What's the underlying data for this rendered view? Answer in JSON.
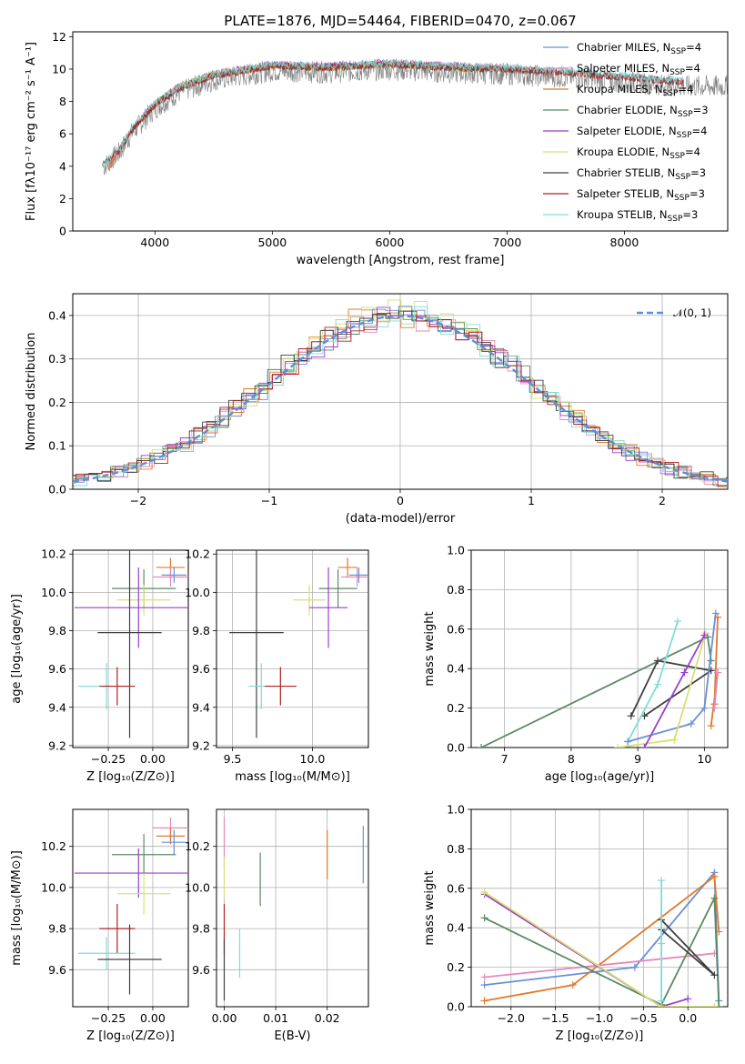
{
  "chart_data": [
    {
      "type": "line",
      "title": "PLATE=1876, MJD=54464, FIBERID=0470, z=0.067",
      "xlabel": "wavelength [Angstrom, rest frame]",
      "ylabel": "Flux [fλ10⁻¹⁷ erg cm⁻² s⁻¹ A⁻¹]",
      "xlim": [
        3300,
        8880
      ],
      "ylim": [
        0,
        12.3
      ],
      "xticks": [
        "4000",
        "5000",
        "6000",
        "7000",
        "8000"
      ],
      "yticks": [
        "0",
        "2",
        "4",
        "6",
        "8",
        "10",
        "12"
      ],
      "legend_position": "upper-right",
      "series": [
        {
          "name": "Chabrier MILES, N_SSP=4",
          "color": "#6a8fd8",
          "x": [
            3600,
            3700,
            3800,
            3900,
            4000,
            4200,
            4500,
            5000,
            5500,
            6000,
            6500,
            7000,
            7400
          ],
          "y": [
            3.8,
            5.0,
            6.2,
            7.0,
            7.8,
            8.8,
            9.6,
            10.2,
            10.1,
            10.3,
            10.1,
            10.0,
            9.7
          ]
        },
        {
          "name": "Salpeter MILES, N_SSP=4",
          "color": "#e58ab8",
          "x": [
            3600,
            3700,
            3800,
            3900,
            4000,
            4200,
            4500,
            5000,
            5500,
            6000,
            6500,
            7000,
            7400
          ],
          "y": [
            3.9,
            5.1,
            6.3,
            7.1,
            7.9,
            8.9,
            9.7,
            10.3,
            10.2,
            10.4,
            10.2,
            10.1,
            9.8
          ]
        },
        {
          "name": "Kroupa MILES, N_SSP=4",
          "color": "#e07a2a",
          "x": [
            3600,
            3700,
            3800,
            3900,
            4000,
            4200,
            4500,
            5000,
            5500,
            6000,
            6500,
            7000,
            7400
          ],
          "y": [
            3.8,
            5.0,
            6.2,
            7.0,
            7.8,
            8.8,
            9.6,
            10.2,
            10.1,
            10.3,
            10.1,
            10.0,
            9.7
          ]
        },
        {
          "name": "Chabrier ELODIE, N_SSP=3",
          "color": "#5a8a64",
          "x": [
            3900,
            4000,
            4200,
            4500,
            5000,
            5500,
            6000,
            6500,
            6800
          ],
          "y": [
            7.0,
            7.9,
            8.9,
            9.7,
            10.2,
            10.1,
            10.3,
            10.1,
            10.0
          ]
        },
        {
          "name": "Salpeter ELODIE, N_SSP=4",
          "color": "#9b3fcf",
          "x": [
            3900,
            4000,
            4200,
            4500,
            5000,
            5500,
            6000,
            6500,
            6800
          ],
          "y": [
            7.1,
            7.9,
            8.9,
            9.7,
            10.3,
            10.2,
            10.4,
            10.2,
            10.1
          ]
        },
        {
          "name": "Kroupa ELODIE, N_SSP=4",
          "color": "#d8e070",
          "x": [
            3900,
            4000,
            4200,
            4500,
            5000,
            5500,
            6000,
            6500,
            6800
          ],
          "y": [
            7.0,
            7.9,
            8.9,
            9.7,
            10.2,
            10.1,
            10.3,
            10.1,
            10.0
          ]
        },
        {
          "name": "Chabrier STELIB, N_SSP=3",
          "color": "#404040",
          "x": [
            3550,
            3700,
            3800,
            3900,
            4000,
            4200,
            4500,
            5000,
            5500,
            6000,
            6500,
            7000,
            7500,
            8000,
            8500
          ],
          "y": [
            4.0,
            5.0,
            6.2,
            7.0,
            7.8,
            8.8,
            9.6,
            10.2,
            10.1,
            10.3,
            10.1,
            10.0,
            9.8,
            9.5,
            9.2
          ]
        },
        {
          "name": "Salpeter STELIB, N_SSP=3",
          "color": "#b22020",
          "x": [
            3550,
            3700,
            3800,
            3900,
            4000,
            4200,
            4500,
            5000,
            5500,
            6000,
            6500,
            7000,
            7500,
            8000,
            8500
          ],
          "y": [
            4.0,
            5.0,
            6.2,
            7.0,
            7.8,
            8.8,
            9.6,
            10.2,
            10.1,
            10.3,
            10.1,
            10.0,
            9.8,
            9.5,
            9.2
          ]
        },
        {
          "name": "Kroupa STELIB, N_SSP=3",
          "color": "#80dcd6",
          "x": [
            3550,
            3700,
            3800,
            3900,
            4000,
            4200,
            4500,
            5000,
            5500,
            6000,
            6500,
            7000,
            7500,
            8000,
            8500
          ],
          "y": [
            4.1,
            5.1,
            6.3,
            7.1,
            7.9,
            8.9,
            9.7,
            10.3,
            10.2,
            10.4,
            10.2,
            10.1,
            9.9,
            9.6,
            9.3
          ]
        }
      ]
    },
    {
      "type": "line",
      "xlabel": "(data-model)/error",
      "ylabel": "Normed distribution",
      "xlim": [
        -2.5,
        2.5
      ],
      "ylim": [
        0,
        0.45
      ],
      "xticks": [
        "−2",
        "−1",
        "0",
        "1",
        "2"
      ],
      "yticks": [
        "0.0",
        "0.1",
        "0.2",
        "0.3",
        "0.4"
      ],
      "legend": "𝒩(0, 1)",
      "gaussian": {
        "mu": 0,
        "sigma": 1,
        "color": "#5b8fd6"
      },
      "histogram_colors": [
        "#6a8fd8",
        "#e58ab8",
        "#e07a2a",
        "#5a8a64",
        "#9b3fcf",
        "#d8e070",
        "#404040",
        "#b22020",
        "#80dcd6"
      ]
    },
    {
      "type": "scatter",
      "xlabel": "Z [log₁₀(Z/Z⊙)]",
      "ylabel": "age  [log₁₀(age/yr)]",
      "xlim": [
        -0.45,
        0.2
      ],
      "ylim": [
        9.19,
        10.22
      ],
      "xticks": [
        "−0.25",
        "0.00"
      ],
      "yticks": [
        "9.2",
        "9.4",
        "9.6",
        "9.8",
        "10.0",
        "10.2"
      ],
      "points": [
        {
          "x": 0.1,
          "y": 10.13,
          "xerr": 0.08,
          "yerr": 0.05,
          "color": "#e07a2a"
        },
        {
          "x": 0.1,
          "y": 10.08,
          "xerr": 0.1,
          "yerr": 0.05,
          "color": "#e58ab8"
        },
        {
          "x": 0.12,
          "y": 10.09,
          "xerr": 0.07,
          "yerr": 0.04,
          "color": "#6a8fd8"
        },
        {
          "x": -0.05,
          "y": 10.02,
          "xerr": 0.18,
          "yerr": 0.1,
          "color": "#5a8a64"
        },
        {
          "x": -0.05,
          "y": 9.96,
          "xerr": 0.15,
          "yerr": 0.08,
          "color": "#d8e070"
        },
        {
          "x": -0.08,
          "y": 9.92,
          "xerr": 0.36,
          "yerr": 0.21,
          "color": "#9b3fcf"
        },
        {
          "x": -0.13,
          "y": 9.79,
          "xerr": 0.18,
          "yerr": 0.55,
          "color": "#404040"
        },
        {
          "x": -0.26,
          "y": 9.51,
          "xerr": 0.16,
          "yerr": 0.12,
          "color": "#80dcd6"
        },
        {
          "x": -0.2,
          "y": 9.51,
          "xerr": 0.1,
          "yerr": 0.1,
          "color": "#b22020"
        }
      ]
    },
    {
      "type": "scatter",
      "xlabel": "mass [log₁₀(M/M⊙)]",
      "xlim": [
        9.4,
        10.35
      ],
      "ylim": [
        9.19,
        10.22
      ],
      "xticks": [
        "9.5",
        "10.0"
      ],
      "yticks": [
        "9.2",
        "9.4",
        "9.6",
        "9.8",
        "10.0",
        "10.2"
      ],
      "points": [
        {
          "x": 10.22,
          "y": 10.13,
          "xerr": 0.06,
          "yerr": 0.05,
          "color": "#e07a2a"
        },
        {
          "x": 10.28,
          "y": 10.08,
          "xerr": 0.1,
          "yerr": 0.05,
          "color": "#e58ab8"
        },
        {
          "x": 10.29,
          "y": 10.09,
          "xerr": 0.06,
          "yerr": 0.04,
          "color": "#6a8fd8"
        },
        {
          "x": 10.16,
          "y": 10.02,
          "xerr": 0.12,
          "yerr": 0.1,
          "color": "#5a8a64"
        },
        {
          "x": 9.98,
          "y": 9.96,
          "xerr": 0.1,
          "yerr": 0.08,
          "color": "#d8e070"
        },
        {
          "x": 10.1,
          "y": 9.92,
          "xerr": 0.12,
          "yerr": 0.21,
          "color": "#9b3fcf"
        },
        {
          "x": 9.65,
          "y": 9.79,
          "xerr": 0.17,
          "yerr": 0.55,
          "color": "#404040"
        },
        {
          "x": 9.68,
          "y": 9.51,
          "xerr": 0.08,
          "yerr": 0.12,
          "color": "#80dcd6"
        },
        {
          "x": 9.8,
          "y": 9.51,
          "xerr": 0.1,
          "yerr": 0.1,
          "color": "#b22020"
        }
      ]
    },
    {
      "type": "line",
      "xlabel": "age  [log₁₀(age/yr)]",
      "ylabel": "mass weight",
      "xlim": [
        6.5,
        10.35
      ],
      "ylim": [
        0,
        1.0
      ],
      "xticks": [
        "7",
        "8",
        "9",
        "10"
      ],
      "yticks": [
        "0.0",
        "0.2",
        "0.4",
        "0.6",
        "0.8",
        "1.0"
      ],
      "series": [
        {
          "color": "#5a8a64",
          "x": [
            6.65,
            10.05,
            10.1
          ],
          "y": [
            0.0,
            0.56,
            0.44
          ]
        },
        {
          "color": "#404040",
          "x": [
            8.9,
            9.3,
            10.1,
            9.1
          ],
          "y": [
            0.16,
            0.44,
            0.39,
            0.16
          ]
        },
        {
          "color": "#80dcd6",
          "x": [
            8.85,
            9.3,
            9.6
          ],
          "y": [
            0.03,
            0.32,
            0.64
          ]
        },
        {
          "color": "#6a8fd8",
          "x": [
            8.85,
            9.8,
            10.0,
            10.17
          ],
          "y": [
            0.03,
            0.12,
            0.2,
            0.68
          ]
        },
        {
          "color": "#e07a2a",
          "x": [
            10.1,
            10.2,
            10.15,
            10.2
          ],
          "y": [
            0.11,
            0.38,
            0.22,
            0.66
          ]
        },
        {
          "color": "#e58ab8",
          "x": [
            10.15,
            10.2
          ],
          "y": [
            0.2,
            0.38
          ]
        },
        {
          "color": "#d8e070",
          "x": [
            8.7,
            9.55,
            10.02
          ],
          "y": [
            0.0,
            0.04,
            0.58
          ]
        },
        {
          "color": "#9b3fcf",
          "x": [
            9.1,
            9.7,
            10.0
          ],
          "y": [
            0.0,
            0.38,
            0.57
          ]
        }
      ]
    },
    {
      "type": "scatter",
      "xlabel": "Z [log₁₀(Z/Z⊙)]",
      "ylabel": "mass [log₁₀(M/M⊙)]",
      "xlim": [
        -0.45,
        0.2
      ],
      "ylim": [
        9.42,
        10.38
      ],
      "xticks": [
        "−0.25",
        "0.00"
      ],
      "yticks": [
        "9.6",
        "9.8",
        "10.0",
        "10.2"
      ],
      "points": [
        {
          "x": 0.1,
          "y": 10.29,
          "xerr": 0.1,
          "yerr": 0.05,
          "color": "#e58ab8"
        },
        {
          "x": 0.1,
          "y": 10.25,
          "xerr": 0.08,
          "yerr": 0.04,
          "color": "#e07a2a"
        },
        {
          "x": 0.12,
          "y": 10.22,
          "xerr": 0.07,
          "yerr": 0.06,
          "color": "#6a8fd8"
        },
        {
          "x": -0.05,
          "y": 10.16,
          "xerr": 0.18,
          "yerr": 0.1,
          "color": "#5a8a64"
        },
        {
          "x": -0.08,
          "y": 10.07,
          "xerr": 0.36,
          "yerr": 0.12,
          "color": "#9b3fcf"
        },
        {
          "x": -0.05,
          "y": 9.97,
          "xerr": 0.15,
          "yerr": 0.1,
          "color": "#d8e070"
        },
        {
          "x": -0.2,
          "y": 9.8,
          "xerr": 0.1,
          "yerr": 0.12,
          "color": "#b22020"
        },
        {
          "x": -0.26,
          "y": 9.68,
          "xerr": 0.16,
          "yerr": 0.08,
          "color": "#80dcd6"
        },
        {
          "x": -0.13,
          "y": 9.65,
          "xerr": 0.18,
          "yerr": 0.17,
          "color": "#404040"
        }
      ]
    },
    {
      "type": "scatter",
      "xlabel": "E(B-V)",
      "xlim": [
        -0.0015,
        0.028
      ],
      "ylim": [
        9.42,
        10.38
      ],
      "xticks": [
        "0.00",
        "0.01",
        "0.02"
      ],
      "yticks": [
        "9.6",
        "9.8",
        "10.0",
        "10.2"
      ],
      "points": [
        {
          "x": 0.0,
          "y": 10.22,
          "yerr": 0.12,
          "color": "#e58ab8"
        },
        {
          "x": 0.0,
          "y": 10.05,
          "yerr": 0.1,
          "color": "#d8e070"
        },
        {
          "x": 0.0,
          "y": 9.8,
          "yerr": 0.12,
          "color": "#b22020"
        },
        {
          "x": 0.0,
          "y": 9.6,
          "yerr": 0.15,
          "color": "#404040"
        },
        {
          "x": 0.003,
          "y": 9.68,
          "yerr": 0.12,
          "color": "#80dcd6"
        },
        {
          "x": 0.007,
          "y": 10.04,
          "yerr": 0.13,
          "color": "#5a8a64"
        },
        {
          "x": 0.02,
          "y": 10.16,
          "yerr": 0.12,
          "color": "#e07a2a"
        },
        {
          "x": 0.027,
          "y": 10.16,
          "yerr": 0.14,
          "color": "#6a8fd8"
        }
      ]
    },
    {
      "type": "line",
      "xlabel": "Z [log₁₀(Z/Z⊙)]",
      "ylabel": "mass weight",
      "xlim": [
        -2.45,
        0.45
      ],
      "ylim": [
        0,
        1.0
      ],
      "xticks": [
        "−2.0",
        "−1.5",
        "−1.0",
        "−0.5",
        "0.0"
      ],
      "yticks": [
        "0.0",
        "0.2",
        "0.4",
        "0.6",
        "0.8",
        "1.0"
      ],
      "series": [
        {
          "color": "#6a8fd8",
          "x": [
            -2.3,
            -0.6,
            0.3,
            0.35
          ],
          "y": [
            0.11,
            0.2,
            0.68,
            0.03
          ]
        },
        {
          "color": "#e07a2a",
          "x": [
            -2.3,
            -1.3,
            0.3,
            0.35
          ],
          "y": [
            0.03,
            0.11,
            0.66,
            0.38
          ]
        },
        {
          "color": "#e58ab8",
          "x": [
            -2.3,
            0.3
          ],
          "y": [
            0.15,
            0.27
          ]
        },
        {
          "color": "#5a8a64",
          "x": [
            -2.3,
            -0.3,
            0.3,
            0.35
          ],
          "y": [
            0.45,
            0.01,
            0.55,
            0.0
          ]
        },
        {
          "color": "#9b3fcf",
          "x": [
            -2.3,
            -0.3,
            0.0
          ],
          "y": [
            0.57,
            0.0,
            0.04
          ]
        },
        {
          "color": "#d8e070",
          "x": [
            -2.3,
            -0.3,
            0.3
          ],
          "y": [
            0.58,
            0.0,
            0.0
          ]
        },
        {
          "color": "#404040",
          "x": [
            -0.3,
            0.3,
            -0.3
          ],
          "y": [
            0.44,
            0.16,
            0.39
          ]
        },
        {
          "color": "#80dcd6",
          "x": [
            -0.3,
            -0.3,
            -0.3
          ],
          "y": [
            0.32,
            0.64,
            0.03
          ]
        }
      ]
    }
  ]
}
